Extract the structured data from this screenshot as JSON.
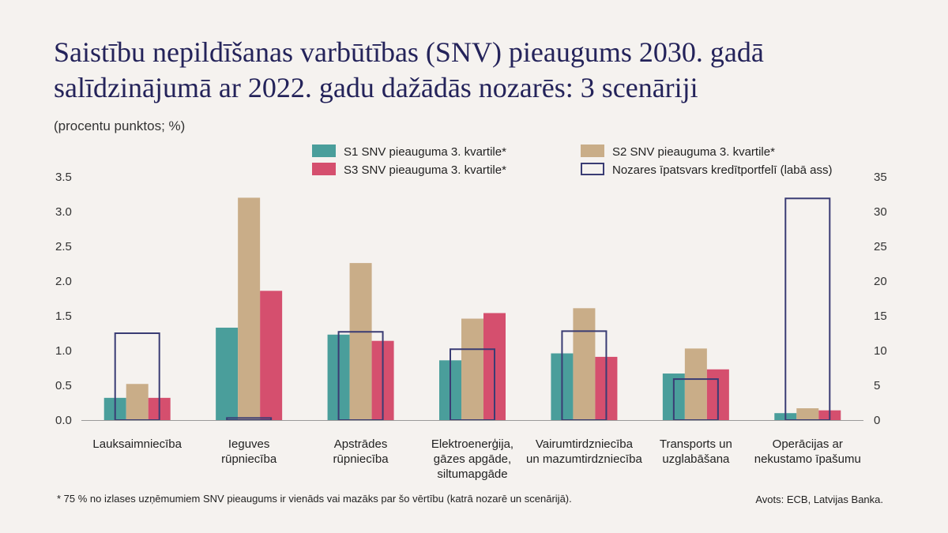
{
  "title": "Saistību nepildīšanas varbūtības (SNV) pieaugums 2030. gadā salīdzinājumā ar 2022. gadu dažādās nozarēs: 3 scenāriji",
  "subtitle": "(procentu punktos; %)",
  "footnote": "* 75 % no izlases uzņēmumiem  SNV pieaugums ir vienāds vai mazāks par šo vērtību (katrā nozarē un scenārijā).",
  "source": "Avots: ECB, Latvijas Banka.",
  "chart_data": {
    "type": "bar",
    "categories": [
      [
        "Lauksaimniecība"
      ],
      [
        "Ieguves",
        "rūpniecība"
      ],
      [
        "Apstrādes",
        "rūpniecība"
      ],
      [
        "Elektroenerģija,",
        "gāzes apgāde,",
        "siltumapgāde"
      ],
      [
        "Vairumtirdzniecība",
        "un mazumtirdzniecība"
      ],
      [
        "Transports un",
        "uzglabāšana"
      ],
      [
        "Operācijas ar",
        "nekustamo īpašumu"
      ]
    ],
    "series": [
      {
        "name": "S1 SNV pieauguma 3. kvartile*",
        "color": "#4a9e9b",
        "axis": "left",
        "values": [
          0.32,
          1.33,
          1.23,
          0.86,
          0.96,
          0.67,
          0.1
        ]
      },
      {
        "name": "S2 SNV pieauguma 3. kvartile*",
        "color": "#c9ad88",
        "axis": "left",
        "values": [
          0.52,
          3.2,
          2.26,
          1.46,
          1.61,
          1.03,
          0.17
        ]
      },
      {
        "name": "S3 SNV pieauguma 3. kvartile*",
        "color": "#d54f6e",
        "axis": "left",
        "values": [
          0.32,
          1.86,
          1.14,
          1.54,
          0.91,
          0.73,
          0.14
        ]
      },
      {
        "name": "Nozares īpatsvars kredītportfelī (labā ass)",
        "color": "#3a3c74",
        "axis": "right",
        "style": "outline",
        "values": [
          12.5,
          0.3,
          12.7,
          10.2,
          12.8,
          5.9,
          31.9
        ]
      }
    ],
    "left_axis": {
      "min": 0,
      "max": 3.5,
      "ticks": [
        "0.0",
        "0.5",
        "1.0",
        "1.5",
        "2.0",
        "2.5",
        "3.0",
        "3.5"
      ]
    },
    "right_axis": {
      "min": 0,
      "max": 35,
      "ticks": [
        "0",
        "5",
        "10",
        "15",
        "20",
        "25",
        "30",
        "35"
      ]
    },
    "legend_placement": "top",
    "grid": false
  }
}
